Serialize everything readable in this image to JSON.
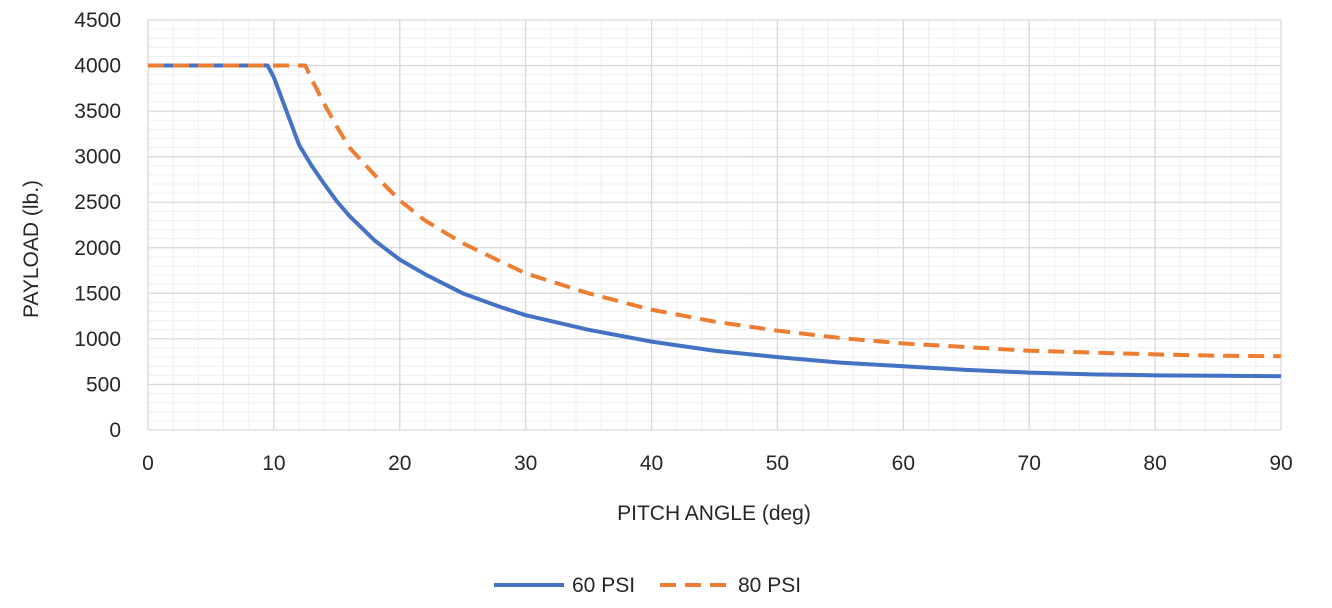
{
  "chart_data": {
    "type": "line",
    "title": "",
    "xlabel": "PITCH ANGLE (deg)",
    "ylabel": "PAYLOAD (lb.)",
    "xlim": [
      0,
      90
    ],
    "ylim": [
      0,
      4500
    ],
    "xticks": [
      0,
      10,
      20,
      30,
      40,
      50,
      60,
      70,
      80,
      90
    ],
    "yticks": [
      0,
      500,
      1000,
      1500,
      2000,
      2500,
      3000,
      3500,
      4000,
      4500
    ],
    "x_minor_step": 2,
    "y_minor_step": 100,
    "grid": true,
    "legend_position": "bottom",
    "series": [
      {
        "name": "60 PSI",
        "color": "#4472C4",
        "dash": "solid",
        "x": [
          0,
          9.5,
          10,
          11,
          12,
          13,
          14,
          15,
          16,
          18,
          20,
          22,
          25,
          28,
          30,
          35,
          40,
          45,
          50,
          55,
          60,
          65,
          70,
          75,
          80,
          85,
          90
        ],
        "y": [
          4000,
          4000,
          3870,
          3500,
          3130,
          2900,
          2700,
          2510,
          2350,
          2080,
          1870,
          1710,
          1500,
          1350,
          1260,
          1100,
          970,
          870,
          800,
          740,
          700,
          660,
          630,
          610,
          600,
          595,
          590
        ]
      },
      {
        "name": "80 PSI",
        "color": "#ED7D31",
        "dash": "dashed",
        "x": [
          0,
          12.5,
          13,
          14,
          15,
          16,
          18,
          20,
          22,
          25,
          28,
          30,
          35,
          40,
          45,
          50,
          55,
          60,
          65,
          70,
          75,
          80,
          85,
          90
        ],
        "y": [
          4000,
          4000,
          3850,
          3580,
          3330,
          3100,
          2800,
          2520,
          2300,
          2050,
          1850,
          1720,
          1500,
          1320,
          1190,
          1090,
          1010,
          950,
          910,
          870,
          850,
          830,
          815,
          810
        ]
      }
    ]
  }
}
